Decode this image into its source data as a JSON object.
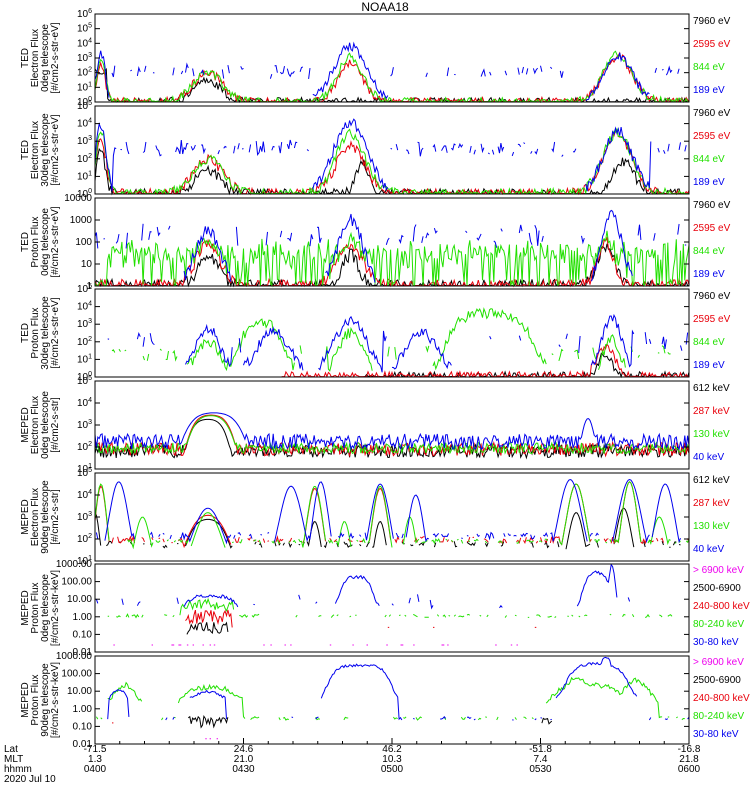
{
  "title": "NOAA18",
  "colors": {
    "black": "#000000",
    "red": "#e8000b",
    "green": "#22e000",
    "blue": "#0000ee",
    "magenta": "#ee00ee"
  },
  "xaxis": {
    "row_labels": [
      "Lat",
      "MLT",
      "hhmm",
      "2020 Jul 10"
    ],
    "ticks": [
      {
        "lat": "-71.5",
        "mlt": "1.3",
        "hhmm": "0400"
      },
      {
        "lat": "24.6",
        "mlt": "21.0",
        "hhmm": "0430"
      },
      {
        "lat": "46.2",
        "mlt": "10.3",
        "hhmm": "0500"
      },
      {
        "lat": "-51.8",
        "mlt": "7.4",
        "hhmm": "0530"
      },
      {
        "lat": "-16.8",
        "mlt": "21.8",
        "hhmm": "0600"
      }
    ]
  },
  "chart_data": [
    {
      "type": "line",
      "ylabel": [
        "TED",
        "Electron Flux",
        "0deg telescope",
        "[#/cm2-s-str-eV]"
      ],
      "yscale": "log",
      "ylim": [
        1,
        1000000
      ],
      "yticks": [
        "10^0",
        "10^1",
        "10^2",
        "10^3",
        "10^4",
        "10^5",
        "10^6"
      ],
      "legend": [
        {
          "label": "7960 eV",
          "color": "black"
        },
        {
          "label": "2595 eV",
          "color": "red"
        },
        {
          "label": "844 eV",
          "color": "green"
        },
        {
          "label": "189 eV",
          "color": "blue"
        }
      ]
    },
    {
      "type": "line",
      "ylabel": [
        "TED",
        "Electron Flux",
        "30deg telescope",
        "[#/cm2-s-str-eV]"
      ],
      "yscale": "log",
      "ylim": [
        1,
        100000
      ],
      "yticks": [
        "10^0",
        "10^1",
        "10^2",
        "10^3",
        "10^4",
        "10^5"
      ],
      "legend": [
        {
          "label": "7960 eV",
          "color": "black"
        },
        {
          "label": "2595 eV",
          "color": "red"
        },
        {
          "label": "844 eV",
          "color": "green"
        },
        {
          "label": "189 eV",
          "color": "blue"
        }
      ]
    },
    {
      "type": "line",
      "ylabel": [
        "TED",
        "Proton Flux",
        "0deg telescope",
        "[#/cm2-s-str-eV]"
      ],
      "yscale": "log",
      "ylim": [
        1,
        10000
      ],
      "yticks": [
        "1",
        "10",
        "100",
        "1000",
        "10000"
      ],
      "legend": [
        {
          "label": "7960 eV",
          "color": "black"
        },
        {
          "label": "2595 eV",
          "color": "red"
        },
        {
          "label": "844 eV",
          "color": "green"
        },
        {
          "label": "189 eV",
          "color": "blue"
        }
      ]
    },
    {
      "type": "line",
      "ylabel": [
        "TED",
        "Proton Flux",
        "30deg telescope",
        "[#/cm2-s-str-eV]"
      ],
      "yscale": "log",
      "ylim": [
        1,
        100000
      ],
      "yticks": [
        "10^0",
        "10^1",
        "10^2",
        "10^3",
        "10^4",
        "10^5"
      ],
      "legend": [
        {
          "label": "7960 eV",
          "color": "black"
        },
        {
          "label": "2595 eV",
          "color": "red"
        },
        {
          "label": "844 eV",
          "color": "green"
        },
        {
          "label": "189 eV",
          "color": "blue"
        }
      ]
    },
    {
      "type": "line",
      "ylabel": [
        "MEPED",
        "Electron Flux",
        "0deg telescope",
        "[#/cm2-s-str]"
      ],
      "yscale": "log",
      "ylim": [
        10,
        100000
      ],
      "yticks": [
        "10^1",
        "10^2",
        "10^3",
        "10^4",
        "10^5"
      ],
      "legend": [
        {
          "label": "612 keV",
          "color": "black"
        },
        {
          "label": "287 keV",
          "color": "red"
        },
        {
          "label": "130 keV",
          "color": "green"
        },
        {
          "label": "40 keV",
          "color": "blue"
        }
      ]
    },
    {
      "type": "line",
      "ylabel": [
        "MEPED",
        "Electron Flux",
        "90deg telescope",
        "[#/cm2-s-str]"
      ],
      "yscale": "log",
      "ylim": [
        10,
        100000
      ],
      "yticks": [
        "10^1",
        "10^2",
        "10^3",
        "10^4",
        "10^5"
      ],
      "legend": [
        {
          "label": "612 keV",
          "color": "black"
        },
        {
          "label": "287 keV",
          "color": "red"
        },
        {
          "label": "130 keV",
          "color": "green"
        },
        {
          "label": "40 keV",
          "color": "blue"
        }
      ]
    },
    {
      "type": "line",
      "ylabel": [
        "MEPED",
        "Proton Flux",
        "0deg telescope",
        "[#/cm2-s-str-keV]"
      ],
      "yscale": "log",
      "ylim": [
        0.01,
        1000
      ],
      "yticks": [
        "0.01",
        "0.10",
        "1.00",
        "10.00",
        "100.00",
        "1000.00"
      ],
      "legend": [
        {
          "label": "> 6900 keV",
          "color": "magenta"
        },
        {
          "label": "2500-6900",
          "color": "black"
        },
        {
          "label": "240-800 keV",
          "color": "red"
        },
        {
          "label": "80-240 keV",
          "color": "green"
        },
        {
          "label": "30-80 keV",
          "color": "blue"
        }
      ]
    },
    {
      "type": "line",
      "ylabel": [
        "MEPED",
        "Proton Flux",
        "90deg telescope",
        "[#/cm2-s-str-keV]"
      ],
      "yscale": "log",
      "ylim": [
        0.01,
        1000
      ],
      "yticks": [
        "0.01",
        "0.10",
        "1.00",
        "10.00",
        "100.00",
        "1000.00"
      ],
      "legend": [
        {
          "label": "> 6900 keV",
          "color": "magenta"
        },
        {
          "label": "2500-6900",
          "color": "black"
        },
        {
          "label": "240-800 keV",
          "color": "red"
        },
        {
          "label": "80-240 keV",
          "color": "green"
        },
        {
          "label": "30-80 keV",
          "color": "blue"
        }
      ]
    }
  ]
}
